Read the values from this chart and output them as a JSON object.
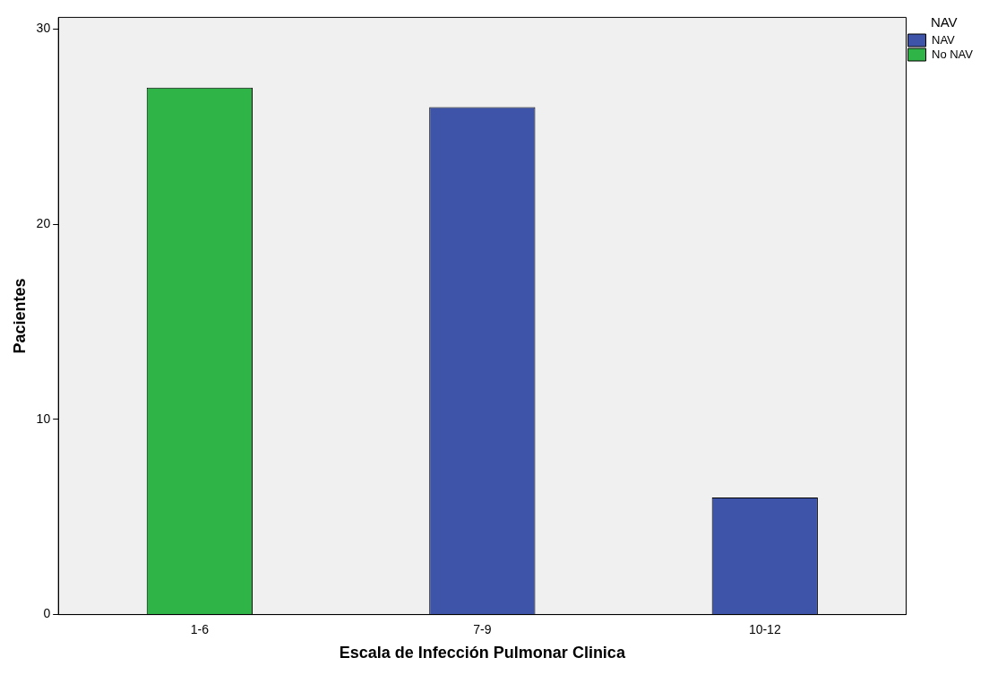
{
  "chart_data": {
    "type": "bar",
    "xlabel": "Escala de Infección Pulmonar Clinica",
    "ylabel": "Pacientes",
    "legend_title": "NAV",
    "categories": [
      "1-6",
      "7-9",
      "10-12"
    ],
    "series": [
      {
        "name": "NAV",
        "color": "#3e54a8",
        "values": [
          null,
          26,
          6
        ]
      },
      {
        "name": "No NAV",
        "color": "#2fb547",
        "values": [
          27,
          null,
          null
        ]
      }
    ],
    "ylim": [
      0,
      30.6
    ],
    "yticks": [
      0,
      10,
      20,
      30
    ],
    "grid": false,
    "legend": "top right"
  }
}
